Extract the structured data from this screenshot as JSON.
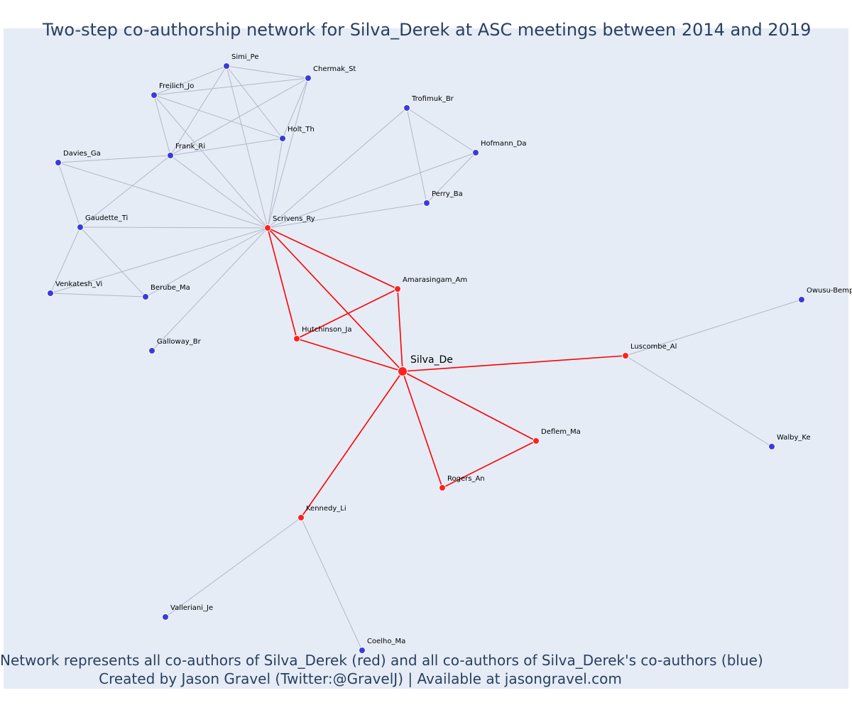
{
  "title": "Two-step co-authorship network for Silva_Derek at ASC meetings between 2014 and 2019",
  "captions": {
    "line1": "Network represents all co-authors of Silva_Derek (red) and all co-authors of Silva_Derek's co-authors (blue)",
    "line2": "Created by Jason Gravel (Twitter:@GravelJ) | Available at jasongravel.com"
  },
  "colors": {
    "direct": "#ff2020",
    "indirect": "#3b3bdc",
    "direct_edge": "#ff0000",
    "indirect_edge": "#b3b7c8",
    "plot_bg": "#e5ecf6",
    "title_text": "#2a3f5f"
  },
  "nodes": [
    {
      "id": "Silva_De",
      "label": "Silva_De",
      "group": "focal"
    },
    {
      "id": "Scrivens_Ry",
      "label": "Scrivens_Ry",
      "group": "direct"
    },
    {
      "id": "Amarasingam_Am",
      "label": "Amarasingam_Am",
      "group": "direct"
    },
    {
      "id": "Hutchinson_Ja",
      "label": "Hutchinson_Ja",
      "group": "direct"
    },
    {
      "id": "Luscombe_Al",
      "label": "Luscombe_Al",
      "group": "direct"
    },
    {
      "id": "Deflem_Ma",
      "label": "Deflem_Ma",
      "group": "direct"
    },
    {
      "id": "Rogers_An",
      "label": "Rogers_An",
      "group": "direct"
    },
    {
      "id": "Kennedy_Li",
      "label": "Kennedy_Li",
      "group": "direct"
    },
    {
      "id": "Simi_Pe",
      "label": "Simi_Pe",
      "group": "indirect"
    },
    {
      "id": "Chermak_St",
      "label": "Chermak_St",
      "group": "indirect"
    },
    {
      "id": "Freilich_Jo",
      "label": "Freilich_Jo",
      "group": "indirect"
    },
    {
      "id": "Holt_Th",
      "label": "Holt_Th",
      "group": "indirect"
    },
    {
      "id": "Frank_Ri",
      "label": "Frank_Ri",
      "group": "indirect"
    },
    {
      "id": "Davies_Ga",
      "label": "Davies_Ga",
      "group": "indirect"
    },
    {
      "id": "Gaudette_Ti",
      "label": "Gaudette_Ti",
      "group": "indirect"
    },
    {
      "id": "Venkatesh_Vi",
      "label": "Venkatesh_Vi",
      "group": "indirect"
    },
    {
      "id": "Berube_Ma",
      "label": "Berube_Ma",
      "group": "indirect"
    },
    {
      "id": "Galloway_Br",
      "label": "Galloway_Br",
      "group": "indirect"
    },
    {
      "id": "Trofimuk_Br",
      "label": "Trofimuk_Br",
      "group": "indirect"
    },
    {
      "id": "Hofmann_Da",
      "label": "Hofmann_Da",
      "group": "indirect"
    },
    {
      "id": "Perry_Ba",
      "label": "Perry_Ba",
      "group": "indirect"
    },
    {
      "id": "Owusu-Bempah",
      "label": "Owusu-Bemp",
      "group": "indirect"
    },
    {
      "id": "Walby_Ke",
      "label": "Walby_Ke",
      "group": "indirect"
    },
    {
      "id": "Valleriani_Je",
      "label": "Valleriani_Je",
      "group": "indirect"
    },
    {
      "id": "Coelho_Ma",
      "label": "Coelho_Ma",
      "group": "indirect"
    }
  ],
  "edges": [
    [
      "Silva_De",
      "Scrivens_Ry",
      "direct"
    ],
    [
      "Silva_De",
      "Amarasingam_Am",
      "direct"
    ],
    [
      "Silva_De",
      "Hutchinson_Ja",
      "direct"
    ],
    [
      "Silva_De",
      "Luscombe_Al",
      "direct"
    ],
    [
      "Silva_De",
      "Deflem_Ma",
      "direct"
    ],
    [
      "Silva_De",
      "Rogers_An",
      "direct"
    ],
    [
      "Silva_De",
      "Kennedy_Li",
      "direct"
    ],
    [
      "Scrivens_Ry",
      "Amarasingam_Am",
      "direct"
    ],
    [
      "Scrivens_Ry",
      "Hutchinson_Ja",
      "direct"
    ],
    [
      "Hutchinson_Ja",
      "Amarasingam_Am",
      "direct"
    ],
    [
      "Deflem_Ma",
      "Rogers_An",
      "direct"
    ],
    [
      "Scrivens_Ry",
      "Simi_Pe",
      "indirect"
    ],
    [
      "Scrivens_Ry",
      "Chermak_St",
      "indirect"
    ],
    [
      "Scrivens_Ry",
      "Freilich_Jo",
      "indirect"
    ],
    [
      "Scrivens_Ry",
      "Holt_Th",
      "indirect"
    ],
    [
      "Scrivens_Ry",
      "Frank_Ri",
      "indirect"
    ],
    [
      "Scrivens_Ry",
      "Davies_Ga",
      "indirect"
    ],
    [
      "Scrivens_Ry",
      "Gaudette_Ti",
      "indirect"
    ],
    [
      "Scrivens_Ry",
      "Venkatesh_Vi",
      "indirect"
    ],
    [
      "Scrivens_Ry",
      "Berube_Ma",
      "indirect"
    ],
    [
      "Scrivens_Ry",
      "Galloway_Br",
      "indirect"
    ],
    [
      "Scrivens_Ry",
      "Trofimuk_Br",
      "indirect"
    ],
    [
      "Scrivens_Ry",
      "Hofmann_Da",
      "indirect"
    ],
    [
      "Scrivens_Ry",
      "Perry_Ba",
      "indirect"
    ],
    [
      "Simi_Pe",
      "Chermak_St",
      "indirect"
    ],
    [
      "Simi_Pe",
      "Freilich_Jo",
      "indirect"
    ],
    [
      "Simi_Pe",
      "Holt_Th",
      "indirect"
    ],
    [
      "Simi_Pe",
      "Frank_Ri",
      "indirect"
    ],
    [
      "Chermak_St",
      "Freilich_Jo",
      "indirect"
    ],
    [
      "Chermak_St",
      "Holt_Th",
      "indirect"
    ],
    [
      "Chermak_St",
      "Frank_Ri",
      "indirect"
    ],
    [
      "Freilich_Jo",
      "Holt_Th",
      "indirect"
    ],
    [
      "Freilich_Jo",
      "Frank_Ri",
      "indirect"
    ],
    [
      "Holt_Th",
      "Frank_Ri",
      "indirect"
    ],
    [
      "Frank_Ri",
      "Davies_Ga",
      "indirect"
    ],
    [
      "Frank_Ri",
      "Gaudette_Ti",
      "indirect"
    ],
    [
      "Davies_Ga",
      "Gaudette_Ti",
      "indirect"
    ],
    [
      "Gaudette_Ti",
      "Venkatesh_Vi",
      "indirect"
    ],
    [
      "Gaudette_Ti",
      "Berube_Ma",
      "indirect"
    ],
    [
      "Venkatesh_Vi",
      "Berube_Ma",
      "indirect"
    ],
    [
      "Trofimuk_Br",
      "Hofmann_Da",
      "indirect"
    ],
    [
      "Trofimuk_Br",
      "Perry_Ba",
      "indirect"
    ],
    [
      "Hofmann_Da",
      "Perry_Ba",
      "indirect"
    ],
    [
      "Luscombe_Al",
      "Owusu-Bempah",
      "indirect"
    ],
    [
      "Luscombe_Al",
      "Walby_Ke",
      "indirect"
    ],
    [
      "Kennedy_Li",
      "Valleriani_Je",
      "indirect"
    ],
    [
      "Kennedy_Li",
      "Coelho_Ma",
      "indirect"
    ]
  ]
}
